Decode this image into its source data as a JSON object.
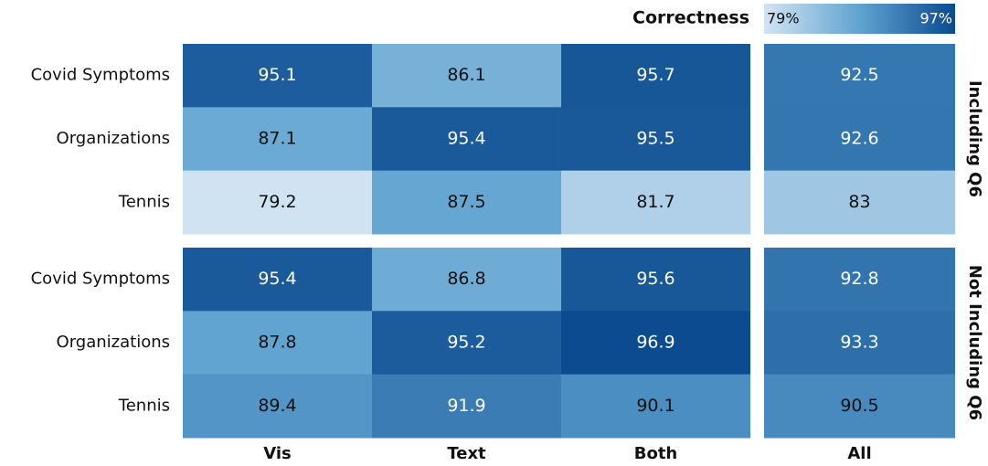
{
  "chart_data": {
    "type": "heatmap",
    "categories": [
      "Vis",
      "Text",
      "Both",
      "All"
    ],
    "rows": [
      "Covid Symptoms",
      "Organizations",
      "Tennis"
    ],
    "groups": [
      {
        "name": "Including Q6",
        "values": [
          [
            95.1,
            86.1,
            95.7,
            92.5
          ],
          [
            87.1,
            95.4,
            95.5,
            92.6
          ],
          [
            79.2,
            87.5,
            81.7,
            83.0
          ]
        ]
      },
      {
        "name": "Not Including Q6",
        "values": [
          [
            95.4,
            86.8,
            95.6,
            92.8
          ],
          [
            87.8,
            95.2,
            96.9,
            93.3
          ],
          [
            89.4,
            91.9,
            90.1,
            90.5
          ]
        ]
      }
    ],
    "colorbar_title": "Correctness",
    "clim": [
      79,
      97
    ],
    "cticks": [
      {
        "value": 79,
        "label": "79%"
      },
      {
        "value": 97,
        "label": "97%"
      }
    ],
    "colors": [
      "#d3e4f3",
      "#5fa3d0",
      "#0b4a8f"
    ]
  }
}
